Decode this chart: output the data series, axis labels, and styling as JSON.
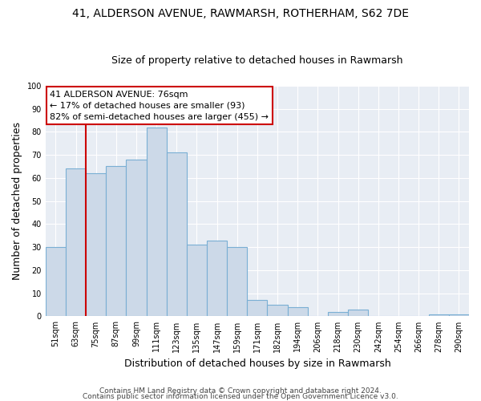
{
  "title": "41, ALDERSON AVENUE, RAWMARSH, ROTHERHAM, S62 7DE",
  "subtitle": "Size of property relative to detached houses in Rawmarsh",
  "xlabel": "Distribution of detached houses by size in Rawmarsh",
  "ylabel": "Number of detached properties",
  "bin_labels": [
    "51sqm",
    "63sqm",
    "75sqm",
    "87sqm",
    "99sqm",
    "111sqm",
    "123sqm",
    "135sqm",
    "147sqm",
    "159sqm",
    "171sqm",
    "182sqm",
    "194sqm",
    "206sqm",
    "218sqm",
    "230sqm",
    "242sqm",
    "254sqm",
    "266sqm",
    "278sqm",
    "290sqm"
  ],
  "bar_heights": [
    30,
    64,
    62,
    65,
    68,
    82,
    71,
    31,
    33,
    30,
    7,
    5,
    4,
    0,
    2,
    3,
    0,
    0,
    0,
    1,
    1
  ],
  "bar_color": "#ccd9e8",
  "bar_edge_color": "#7aafd4",
  "vline_color": "#cc0000",
  "vline_x_index": 1.5,
  "annotation_box_text": "41 ALDERSON AVENUE: 76sqm\n← 17% of detached houses are smaller (93)\n82% of semi-detached houses are larger (455) →",
  "annotation_box_edge_color": "#cc0000",
  "ylim": [
    0,
    100
  ],
  "yticks": [
    0,
    10,
    20,
    30,
    40,
    50,
    60,
    70,
    80,
    90,
    100
  ],
  "footer_line1": "Contains HM Land Registry data © Crown copyright and database right 2024.",
  "footer_line2": "Contains public sector information licensed under the Open Government Licence v3.0.",
  "plot_bg_color": "#e8edf4",
  "fig_bg_color": "#ffffff",
  "grid_color": "#ffffff",
  "title_fontsize": 10,
  "subtitle_fontsize": 9,
  "axis_label_fontsize": 9,
  "tick_fontsize": 7,
  "annotation_fontsize": 8,
  "footer_fontsize": 6.5
}
